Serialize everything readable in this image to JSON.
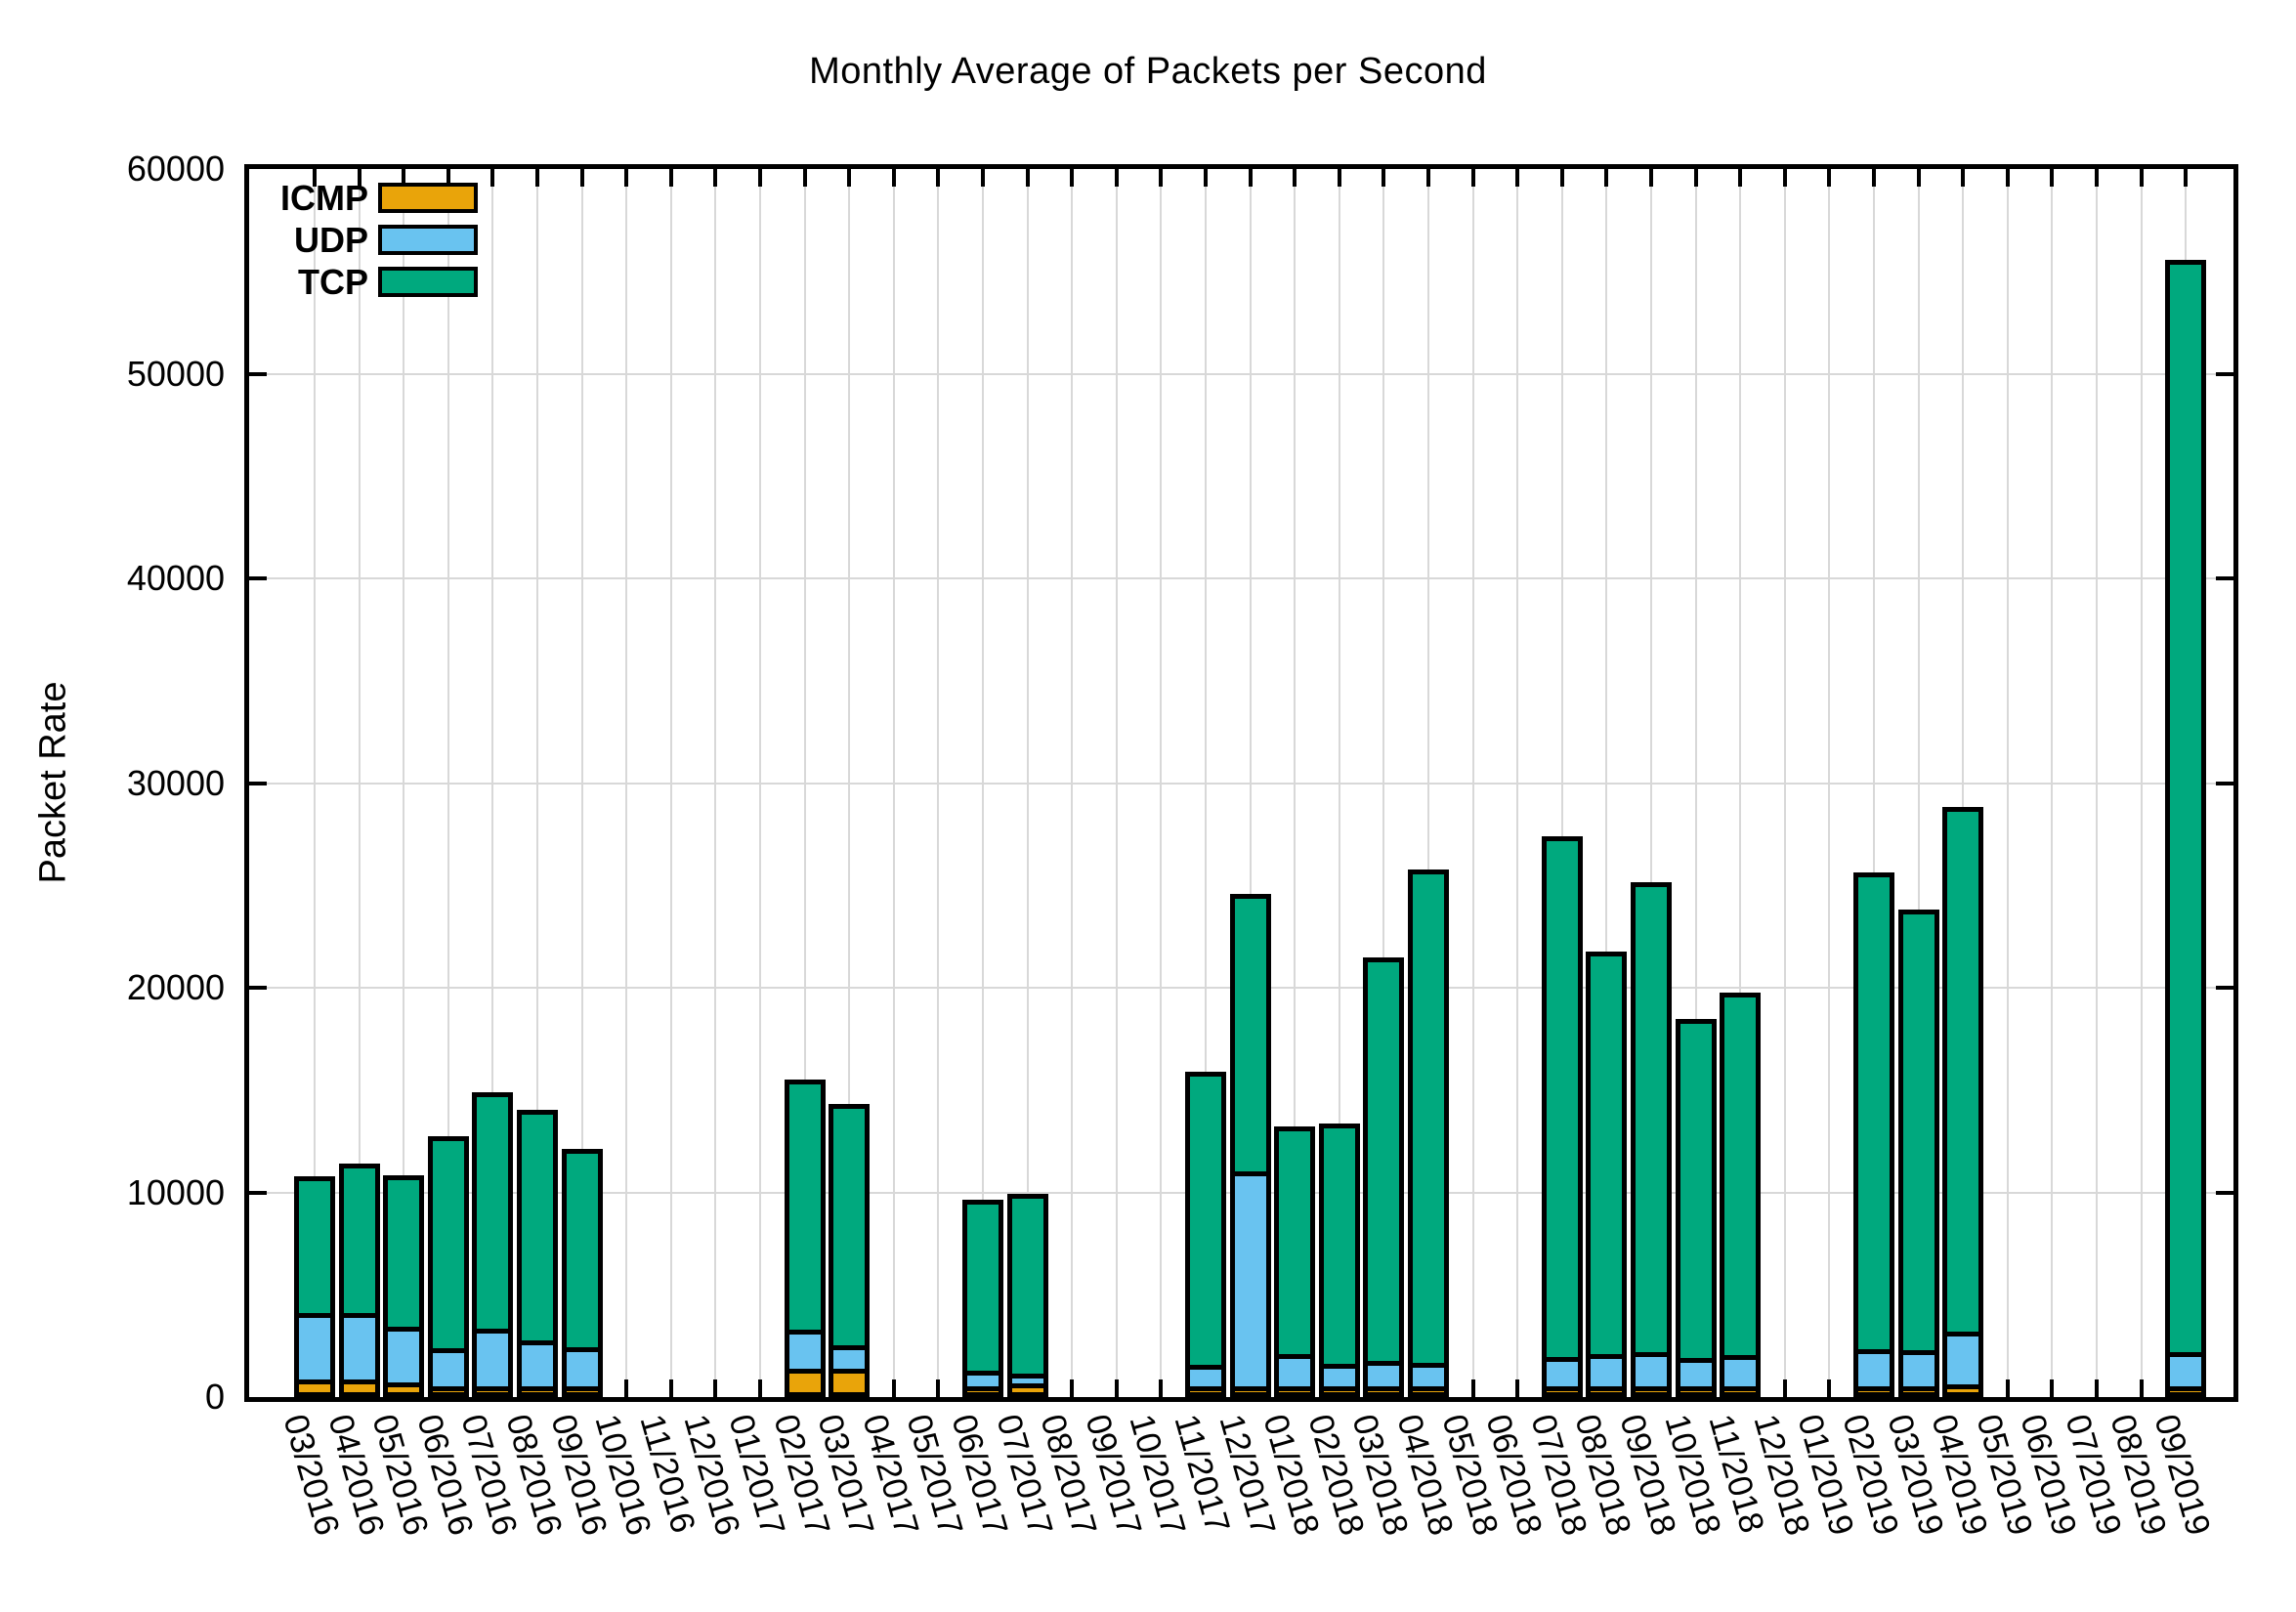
{
  "chart_data": {
    "type": "bar",
    "stacked": true,
    "title": "Monthly Average of Packets per Second",
    "xlabel": "",
    "ylabel": "Packet Rate",
    "ylim": [
      0,
      60000
    ],
    "ytick_step": 10000,
    "ytick_labels": [
      "0",
      "10000",
      "20000",
      "30000",
      "40000",
      "50000",
      "60000"
    ],
    "grid": true,
    "legend_position": "top-left",
    "categories": [
      "03/2016",
      "04/2016",
      "05/2016",
      "06/2016",
      "07/2016",
      "08/2016",
      "09/2016",
      "10/2016",
      "11/2016",
      "12/2016",
      "01/2017",
      "02/2017",
      "03/2017",
      "04/2017",
      "05/2017",
      "06/2017",
      "07/2017",
      "08/2017",
      "09/2017",
      "10/2017",
      "11/2017",
      "12/2017",
      "01/2018",
      "02/2018",
      "03/2018",
      "04/2018",
      "05/2018",
      "06/2018",
      "07/2018",
      "08/2018",
      "09/2018",
      "10/2018",
      "11/2018",
      "12/2018",
      "01/2019",
      "02/2019",
      "03/2019",
      "04/2019",
      "05/2019",
      "06/2019",
      "07/2019",
      "08/2019",
      "09/2019"
    ],
    "series": [
      {
        "name": "ICMP",
        "color": "#e9a40a",
        "values": [
          850,
          850,
          700,
          200,
          150,
          150,
          100,
          0,
          0,
          0,
          0,
          1400,
          1400,
          0,
          0,
          450,
          650,
          0,
          0,
          0,
          350,
          250,
          250,
          250,
          270,
          350,
          0,
          0,
          280,
          280,
          290,
          290,
          290,
          0,
          0,
          500,
          450,
          600,
          0,
          0,
          0,
          0,
          280
        ]
      },
      {
        "name": "UDP",
        "color": "#69c3f0",
        "values": [
          3500,
          3500,
          2950,
          2100,
          3050,
          2500,
          2150,
          0,
          0,
          0,
          0,
          2150,
          1400,
          0,
          0,
          1000,
          700,
          0,
          0,
          0,
          1300,
          10750,
          1800,
          1350,
          1480,
          1400,
          0,
          0,
          1660,
          1810,
          1890,
          1610,
          1750,
          0,
          0,
          2050,
          2000,
          2800,
          0,
          0,
          0,
          0,
          1900
        ]
      },
      {
        "name": "TCP",
        "color": "#00a97e",
        "values": [
          6900,
          7550,
          7650,
          10600,
          11800,
          11500,
          9950,
          0,
          0,
          0,
          0,
          12450,
          12050,
          0,
          0,
          8600,
          9000,
          0,
          0,
          0,
          14550,
          13800,
          11350,
          12000,
          19950,
          24350,
          0,
          0,
          25660,
          19910,
          23220,
          16800,
          17960,
          0,
          0,
          23550,
          21750,
          25850,
          0,
          0,
          0,
          0,
          53620
        ]
      }
    ]
  }
}
